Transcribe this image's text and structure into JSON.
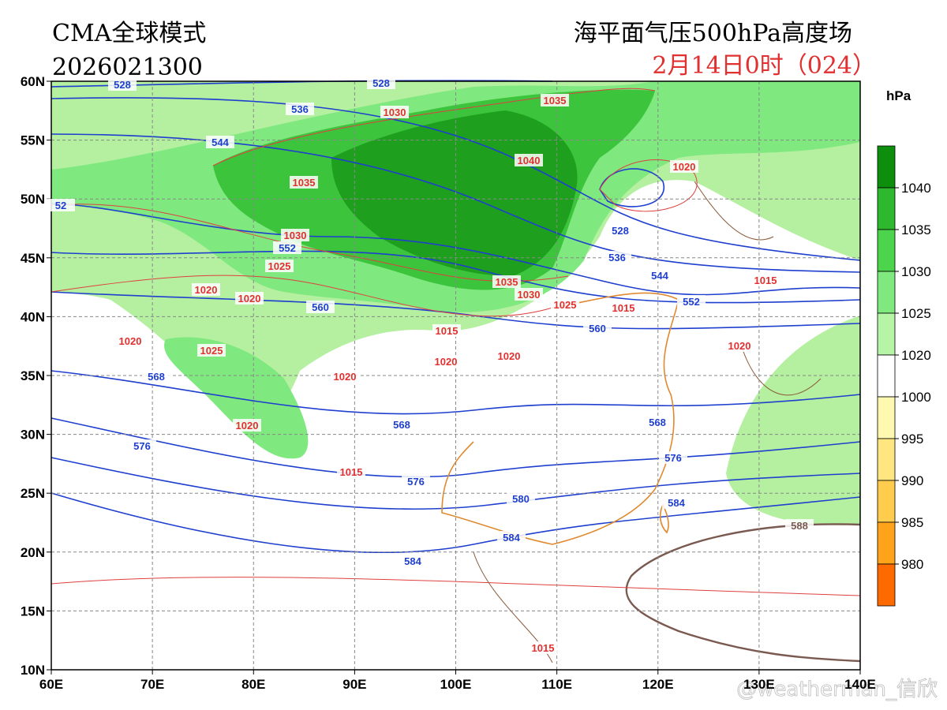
{
  "header": {
    "model": "CMA全球模式",
    "init_time": "2026021300",
    "fields": "海平面气压500hPa高度场",
    "valid_time": "2月14日0时（024）"
  },
  "colorbar": {
    "unit": "hPa",
    "labels": [
      "1040",
      "1035",
      "1030",
      "1025",
      "1020",
      "1000",
      "995",
      "990",
      "985",
      "980"
    ]
  },
  "axes": {
    "lat_labels": [
      "60N",
      "55N",
      "50N",
      "45N",
      "40N",
      "35N",
      "30N",
      "25N",
      "20N",
      "15N",
      "10N"
    ],
    "lon_labels": [
      "60E",
      "70E",
      "80E",
      "90E",
      "100E",
      "110E",
      "120E",
      "130E",
      "140E"
    ]
  },
  "contour_labels": {
    "sea_level_pressure": [
      "1030",
      "1035",
      "1040",
      "1035",
      "1020",
      "1030",
      "1025",
      "1020",
      "1020",
      "1020",
      "1025",
      "1015",
      "1035",
      "1030",
      "1025",
      "1015",
      "1015",
      "1020",
      "1020",
      "1020",
      "1020",
      "1020",
      "1015",
      "1015"
    ],
    "height_500hPa": [
      "528",
      "528",
      "536",
      "544",
      "52",
      "552",
      "560",
      "568",
      "528",
      "536",
      "544",
      "552",
      "560",
      "568",
      "568",
      "576",
      "576",
      "576",
      "580",
      "584",
      "584",
      "584",
      "588"
    ]
  },
  "watermark": "@weatherman_信欣"
}
